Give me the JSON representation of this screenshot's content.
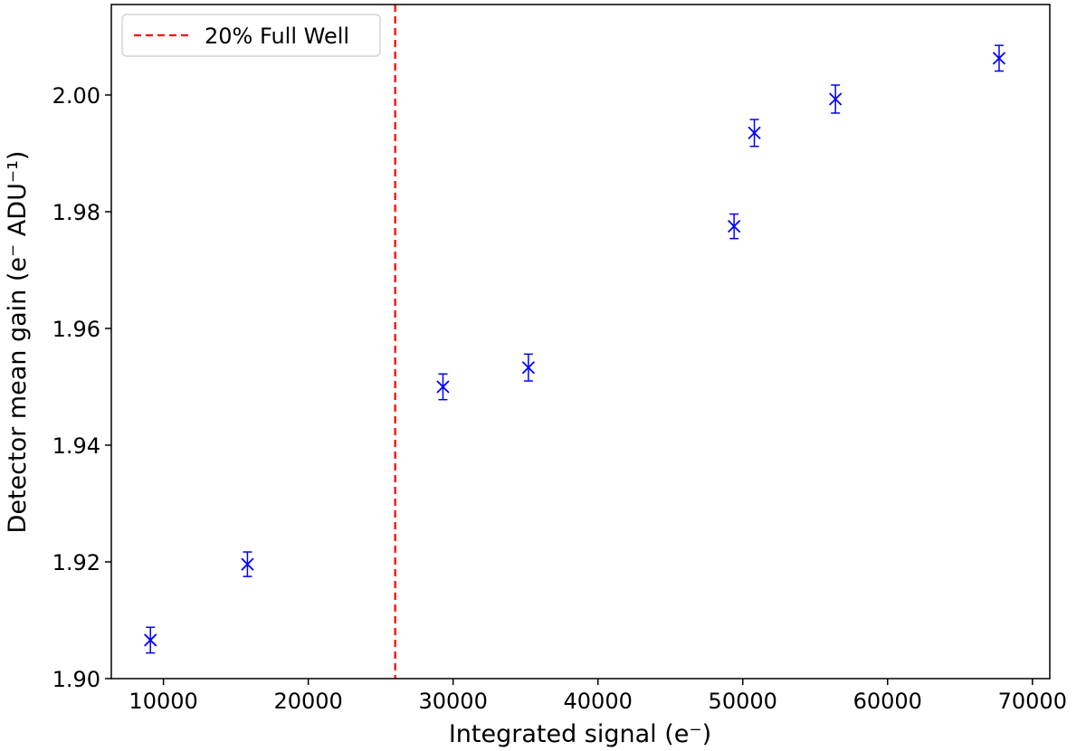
{
  "chart_data": {
    "type": "scatter",
    "xlabel": "Integrated signal (e⁻)",
    "ylabel": "Detector mean gain (e⁻ ADU⁻¹)",
    "xlim": [
      6400,
      71200
    ],
    "ylim": [
      1.9,
      2.0155
    ],
    "x_ticks": [
      10000,
      20000,
      30000,
      40000,
      50000,
      60000,
      70000
    ],
    "x_tick_labels": [
      "10000",
      "20000",
      "30000",
      "40000",
      "50000",
      "60000",
      "70000"
    ],
    "y_ticks": [
      1.9,
      1.92,
      1.94,
      1.96,
      1.98,
      2.0
    ],
    "y_tick_labels": [
      "1.90",
      "1.92",
      "1.94",
      "1.96",
      "1.98",
      "2.00"
    ],
    "grid": false,
    "legend": {
      "position": "top-left",
      "entries": [
        "20% Full Well"
      ]
    },
    "series": [
      {
        "marker": "x",
        "color": "#0000ff",
        "points": [
          {
            "x": 9100,
            "y": 1.9066,
            "err": 0.0022
          },
          {
            "x": 15800,
            "y": 1.9196,
            "err": 0.0021
          },
          {
            "x": 29300,
            "y": 1.95,
            "err": 0.0022
          },
          {
            "x": 35200,
            "y": 1.9533,
            "err": 0.0023
          },
          {
            "x": 49400,
            "y": 1.9775,
            "err": 0.0021
          },
          {
            "x": 50800,
            "y": 1.9935,
            "err": 0.0023
          },
          {
            "x": 56400,
            "y": 1.9993,
            "err": 0.0024
          },
          {
            "x": 67700,
            "y": 2.0063,
            "err": 0.0022
          }
        ]
      }
    ],
    "vlines": [
      {
        "x": 26000,
        "label": "20% Full Well",
        "color": "#ff0000",
        "style": "dashed"
      }
    ]
  }
}
